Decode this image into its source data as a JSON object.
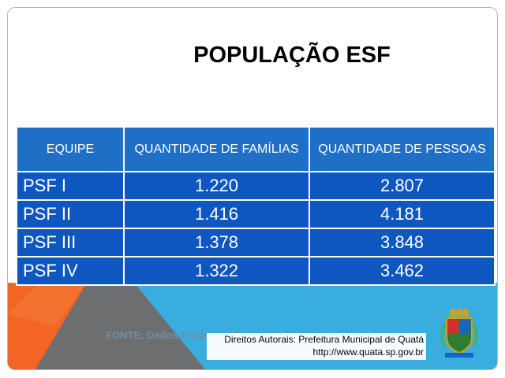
{
  "slide": {
    "title": "POPULAÇÃO ESF",
    "table": {
      "headers": [
        "EQUIPE",
        "QUANTIDADE DE FAMÍLIAS",
        "QUANTIDADE DE PESSOAS"
      ],
      "rows": [
        [
          "PSF I",
          "1.220",
          "2.807"
        ],
        [
          "PSF II",
          "1.416",
          "4.181"
        ],
        [
          "PSF III",
          "1.378",
          "3.848"
        ],
        [
          "PSF IV",
          "1.322",
          "3.462"
        ]
      ]
    },
    "source_text": "FONTE:  Dados tirados do Programa Fácil",
    "credit": {
      "line1": "Direitos Autorais: Prefeitura Municipal de Quatá",
      "line2": "http://www.quata.sp.gov.br"
    },
    "crest_icon": "municipal-coat-of-arms",
    "colors": {
      "header_blue": "#1f6fc7",
      "row_blue": "#0f57c0",
      "banner_orange": "#f26522",
      "banner_cyan": "#3cb0df",
      "banner_dark": "#6d6e70"
    }
  }
}
